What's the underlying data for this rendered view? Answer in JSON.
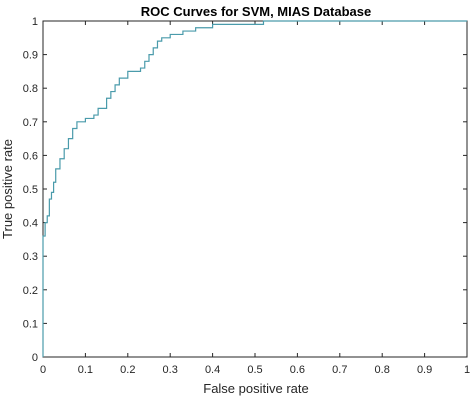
{
  "chart_data": {
    "type": "line",
    "title": "ROC Curves for SVM, MIAS Database",
    "xlabel": "False positive rate",
    "ylabel": "True positive rate",
    "xlim": [
      0,
      1
    ],
    "ylim": [
      0,
      1
    ],
    "xticks": [
      0,
      0.1,
      0.2,
      0.3,
      0.4,
      0.5,
      0.6,
      0.7,
      0.8,
      0.9,
      1
    ],
    "yticks": [
      0,
      0.1,
      0.2,
      0.3,
      0.4,
      0.5,
      0.6,
      0.7,
      0.8,
      0.9,
      1
    ],
    "xtick_labels": [
      "0",
      "0.1",
      "0.2",
      "0.3",
      "0.4",
      "0.5",
      "0.6",
      "0.7",
      "0.8",
      "0.9",
      "1"
    ],
    "ytick_labels": [
      "0",
      "0.1",
      "0.2",
      "0.3",
      "0.4",
      "0.5",
      "0.6",
      "0.7",
      "0.8",
      "0.9",
      "1"
    ],
    "grid": false,
    "line_color": "#4a9bab",
    "series": [
      {
        "x": [
          0,
          0,
          0.005,
          0.01,
          0.015,
          0.02,
          0.025,
          0.03,
          0.04,
          0.05,
          0.06,
          0.07,
          0.08,
          0.1,
          0.12,
          0.13,
          0.15,
          0.16,
          0.17,
          0.18,
          0.2,
          0.21,
          0.23,
          0.24,
          0.25,
          0.26,
          0.27,
          0.28,
          0.3,
          0.33,
          0.36,
          0.4,
          0.45,
          0.5,
          0.52,
          0.6,
          0.8,
          1
        ],
        "y": [
          0,
          0.36,
          0.4,
          0.42,
          0.47,
          0.49,
          0.52,
          0.56,
          0.59,
          0.62,
          0.65,
          0.68,
          0.7,
          0.71,
          0.72,
          0.74,
          0.77,
          0.79,
          0.81,
          0.83,
          0.85,
          0.85,
          0.86,
          0.88,
          0.9,
          0.92,
          0.94,
          0.95,
          0.96,
          0.97,
          0.98,
          0.99,
          0.99,
          0.99,
          1.0,
          1.0,
          1.0,
          1.0
        ]
      }
    ]
  }
}
